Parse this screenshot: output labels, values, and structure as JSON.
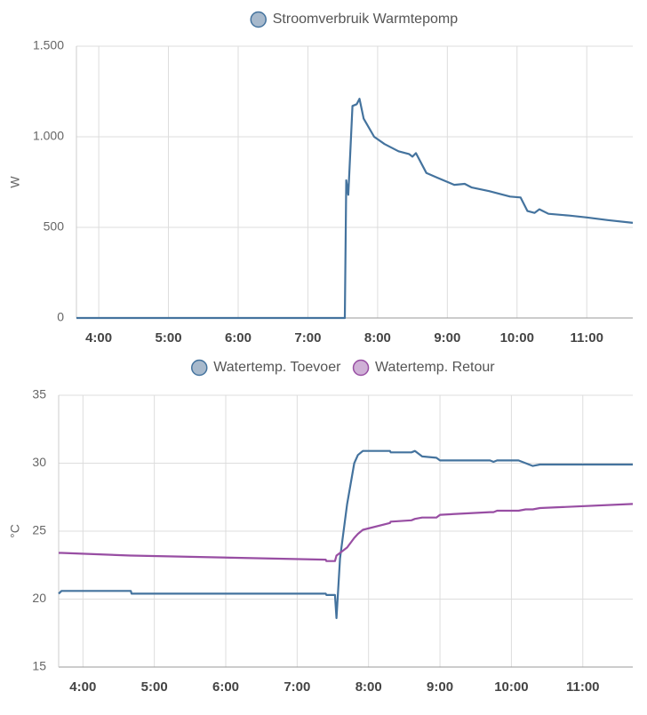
{
  "chart_data": [
    {
      "type": "line",
      "y_label": "W",
      "x": [
        3.68,
        7.53,
        7.55,
        7.58,
        7.64,
        7.7,
        7.74,
        7.8,
        7.95,
        8.1,
        8.3,
        8.45,
        8.5,
        8.55,
        8.7,
        8.85,
        9.1,
        9.25,
        9.35,
        9.6,
        9.9,
        10.05,
        10.15,
        10.25,
        10.32,
        10.45,
        10.75,
        11.0,
        11.3,
        11.66
      ],
      "series": [
        {
          "name": "Stroomverbruik Warmtepomp",
          "color": "#44739e",
          "fill": "#a7b9cc",
          "values": [
            0,
            0,
            760,
            680,
            1170,
            1180,
            1210,
            1100,
            1000,
            960,
            920,
            905,
            890,
            910,
            800,
            775,
            735,
            740,
            720,
            700,
            670,
            665,
            590,
            580,
            600,
            575,
            565,
            555,
            540,
            525
          ]
        }
      ],
      "xlim": [
        3.68,
        11.66
      ],
      "xticks": [
        {
          "value": 4,
          "label": "4:00"
        },
        {
          "value": 5,
          "label": "5:00"
        },
        {
          "value": 6,
          "label": "6:00"
        },
        {
          "value": 7,
          "label": "7:00"
        },
        {
          "value": 8,
          "label": "8:00"
        },
        {
          "value": 9,
          "label": "9:00"
        },
        {
          "value": 10,
          "label": "10:00"
        },
        {
          "value": 11,
          "label": "11:00"
        }
      ],
      "ylim": [
        0,
        1500
      ],
      "yticks": [
        0,
        500,
        {
          "value": 1000,
          "label": "1.000"
        },
        {
          "value": 1500,
          "label": "1.500"
        }
      ],
      "grid": true
    },
    {
      "type": "line",
      "y_label": "°C",
      "x": [
        3.66,
        3.7,
        4.67,
        4.68,
        7.4,
        7.41,
        7.53,
        7.55,
        7.6,
        7.7,
        7.8,
        7.85,
        7.92,
        8.3,
        8.31,
        8.6,
        8.65,
        8.75,
        8.95,
        9.0,
        9.7,
        9.75,
        9.8,
        10.1,
        10.2,
        10.3,
        10.4,
        11.7
      ],
      "series": [
        {
          "name": "Watertemp. Toevoer",
          "color": "#44739e",
          "fill": "#a7b9cc",
          "values": [
            20.4,
            20.6,
            20.6,
            20.4,
            20.4,
            20.3,
            20.3,
            18.6,
            23,
            27,
            30,
            30.6,
            30.9,
            30.9,
            30.8,
            30.8,
            30.9,
            30.5,
            30.4,
            30.2,
            30.2,
            30.1,
            30.2,
            30.2,
            30.0,
            29.8,
            29.9,
            29.9
          ]
        },
        {
          "name": "Watertemp. Retour",
          "color": "#984ea3",
          "fill": "#cfb0d6",
          "values": [
            23.4,
            23.4,
            23.2,
            23.2,
            22.9,
            22.8,
            22.8,
            23.2,
            23.4,
            23.8,
            24.5,
            24.8,
            25.1,
            25.6,
            25.7,
            25.8,
            25.9,
            26.0,
            26.0,
            26.2,
            26.4,
            26.4,
            26.5,
            26.5,
            26.6,
            26.6,
            26.7,
            27.0
          ]
        }
      ],
      "xlim": [
        3.66,
        11.7
      ],
      "xticks": [
        {
          "value": 4,
          "label": "4:00"
        },
        {
          "value": 5,
          "label": "5:00"
        },
        {
          "value": 6,
          "label": "6:00"
        },
        {
          "value": 7,
          "label": "7:00"
        },
        {
          "value": 8,
          "label": "8:00"
        },
        {
          "value": 9,
          "label": "9:00"
        },
        {
          "value": 10,
          "label": "10:00"
        },
        {
          "value": 11,
          "label": "11:00"
        }
      ],
      "ylim": [
        15,
        35
      ],
      "yticks": [
        15,
        20,
        25,
        30,
        35
      ],
      "grid": true
    }
  ]
}
